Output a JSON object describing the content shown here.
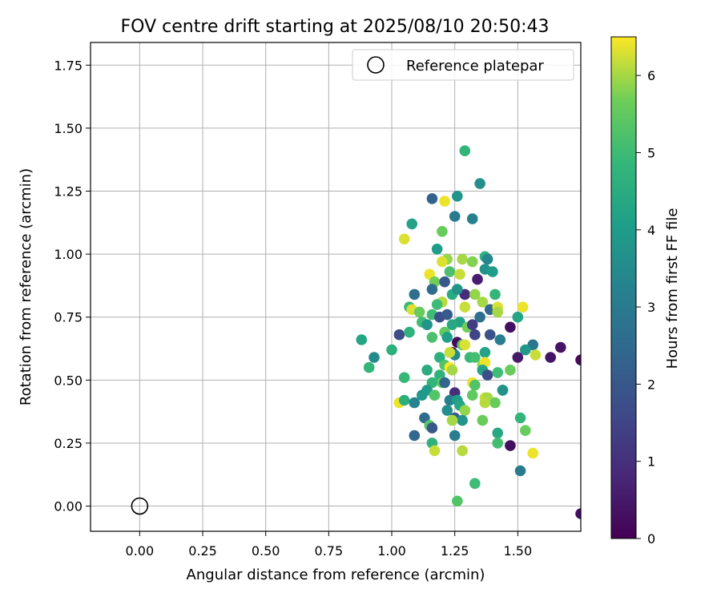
{
  "chart_data": {
    "type": "scatter",
    "title": "FOV centre drift starting at 2025/08/10 20:50:43",
    "xlabel": "Angular distance from reference (arcmin)",
    "ylabel": "Rotation from reference (arcmin)",
    "xlim": [
      -0.195,
      1.75
    ],
    "ylim": [
      -0.1,
      1.84
    ],
    "xticks": [
      "0.00",
      "0.25",
      "0.50",
      "0.75",
      "1.00",
      "1.25",
      "1.50"
    ],
    "yticks": [
      "0.00",
      "0.25",
      "0.50",
      "0.75",
      "1.00",
      "1.25",
      "1.50",
      "1.75"
    ],
    "grid": true,
    "legend": {
      "position": "top-right",
      "entries": [
        "Reference platepar"
      ]
    },
    "reference_point": {
      "x": 0.0,
      "y": 0.0,
      "name": "Reference platepar"
    },
    "colorbar": {
      "label": "Hours from first FF file",
      "colormap": "viridis",
      "range": [
        0,
        6.5
      ],
      "ticks": [
        "0",
        "1",
        "2",
        "3",
        "4",
        "5",
        "6"
      ]
    },
    "points": [
      {
        "x": 1.29,
        "y": 1.41,
        "h": 4.8
      },
      {
        "x": 1.35,
        "y": 1.28,
        "h": 3.6
      },
      {
        "x": 1.26,
        "y": 1.23,
        "h": 3.8
      },
      {
        "x": 1.16,
        "y": 1.22,
        "h": 2.3
      },
      {
        "x": 1.21,
        "y": 1.21,
        "h": 6.4
      },
      {
        "x": 1.25,
        "y": 1.15,
        "h": 3.0
      },
      {
        "x": 1.32,
        "y": 1.14,
        "h": 3.2
      },
      {
        "x": 1.08,
        "y": 1.12,
        "h": 4.2
      },
      {
        "x": 1.2,
        "y": 1.09,
        "h": 5.6
      },
      {
        "x": 1.05,
        "y": 1.06,
        "h": 6.3
      },
      {
        "x": 1.18,
        "y": 1.02,
        "h": 4.0
      },
      {
        "x": 1.22,
        "y": 0.98,
        "h": 5.9
      },
      {
        "x": 1.2,
        "y": 0.97,
        "h": 6.3
      },
      {
        "x": 1.28,
        "y": 0.98,
        "h": 6.0
      },
      {
        "x": 1.32,
        "y": 0.97,
        "h": 5.8
      },
      {
        "x": 1.37,
        "y": 0.99,
        "h": 4.6
      },
      {
        "x": 1.38,
        "y": 0.98,
        "h": 3.4
      },
      {
        "x": 1.23,
        "y": 0.93,
        "h": 5.2
      },
      {
        "x": 1.27,
        "y": 0.92,
        "h": 6.2
      },
      {
        "x": 1.37,
        "y": 0.94,
        "h": 3.7
      },
      {
        "x": 1.4,
        "y": 0.93,
        "h": 4.0
      },
      {
        "x": 1.15,
        "y": 0.92,
        "h": 6.4
      },
      {
        "x": 1.17,
        "y": 0.89,
        "h": 5.7
      },
      {
        "x": 1.21,
        "y": 0.89,
        "h": 2.0
      },
      {
        "x": 1.34,
        "y": 0.9,
        "h": 0.6
      },
      {
        "x": 1.16,
        "y": 0.86,
        "h": 2.6
      },
      {
        "x": 1.09,
        "y": 0.84,
        "h": 2.7
      },
      {
        "x": 1.24,
        "y": 0.84,
        "h": 4.5
      },
      {
        "x": 1.29,
        "y": 0.84,
        "h": 0.9
      },
      {
        "x": 1.33,
        "y": 0.84,
        "h": 5.9
      },
      {
        "x": 1.26,
        "y": 0.86,
        "h": 3.7
      },
      {
        "x": 1.41,
        "y": 0.84,
        "h": 4.8
      },
      {
        "x": 1.36,
        "y": 0.81,
        "h": 6.0
      },
      {
        "x": 1.2,
        "y": 0.81,
        "h": 6.1
      },
      {
        "x": 1.18,
        "y": 0.8,
        "h": 5.0
      },
      {
        "x": 1.39,
        "y": 0.78,
        "h": 2.4
      },
      {
        "x": 1.07,
        "y": 0.79,
        "h": 4.9
      },
      {
        "x": 1.08,
        "y": 0.78,
        "h": 6.3
      },
      {
        "x": 1.11,
        "y": 0.77,
        "h": 5.6
      },
      {
        "x": 1.29,
        "y": 0.79,
        "h": 6.2
      },
      {
        "x": 1.42,
        "y": 0.79,
        "h": 6.3
      },
      {
        "x": 1.42,
        "y": 0.77,
        "h": 6.0
      },
      {
        "x": 1.52,
        "y": 0.79,
        "h": 6.4
      },
      {
        "x": 1.16,
        "y": 0.76,
        "h": 5.0
      },
      {
        "x": 1.19,
        "y": 0.75,
        "h": 1.8
      },
      {
        "x": 1.22,
        "y": 0.76,
        "h": 2.1
      },
      {
        "x": 1.35,
        "y": 0.75,
        "h": 2.7
      },
      {
        "x": 1.5,
        "y": 0.75,
        "h": 4.3
      },
      {
        "x": 1.12,
        "y": 0.73,
        "h": 5.0
      },
      {
        "x": 1.14,
        "y": 0.72,
        "h": 3.8
      },
      {
        "x": 1.27,
        "y": 0.73,
        "h": 4.2
      },
      {
        "x": 1.3,
        "y": 0.71,
        "h": 5.7
      },
      {
        "x": 1.24,
        "y": 0.72,
        "h": 4.4
      },
      {
        "x": 1.32,
        "y": 0.72,
        "h": 1.3
      },
      {
        "x": 1.47,
        "y": 0.71,
        "h": 0.3
      },
      {
        "x": 1.03,
        "y": 0.68,
        "h": 1.7
      },
      {
        "x": 1.07,
        "y": 0.69,
        "h": 4.7
      },
      {
        "x": 1.21,
        "y": 0.69,
        "h": 5.5
      },
      {
        "x": 1.22,
        "y": 0.67,
        "h": 4.1
      },
      {
        "x": 1.16,
        "y": 0.67,
        "h": 5.2
      },
      {
        "x": 1.33,
        "y": 0.68,
        "h": 1.5
      },
      {
        "x": 1.39,
        "y": 0.68,
        "h": 1.9
      },
      {
        "x": 1.43,
        "y": 0.66,
        "h": 3.1
      },
      {
        "x": 0.88,
        "y": 0.66,
        "h": 4.3
      },
      {
        "x": 1.26,
        "y": 0.65,
        "h": 0.2
      },
      {
        "x": 1.28,
        "y": 0.64,
        "h": 5.4
      },
      {
        "x": 1.29,
        "y": 0.64,
        "h": 6.3
      },
      {
        "x": 1.56,
        "y": 0.64,
        "h": 2.9
      },
      {
        "x": 1.67,
        "y": 0.63,
        "h": 0.4
      },
      {
        "x": 1.0,
        "y": 0.62,
        "h": 4.6
      },
      {
        "x": 1.53,
        "y": 0.62,
        "h": 3.9
      },
      {
        "x": 1.24,
        "y": 0.61,
        "h": 0.3
      },
      {
        "x": 1.25,
        "y": 0.6,
        "h": 3.5
      },
      {
        "x": 1.23,
        "y": 0.61,
        "h": 6.2
      },
      {
        "x": 1.37,
        "y": 0.61,
        "h": 4.2
      },
      {
        "x": 0.93,
        "y": 0.59,
        "h": 3.5
      },
      {
        "x": 1.19,
        "y": 0.59,
        "h": 4.6
      },
      {
        "x": 1.31,
        "y": 0.59,
        "h": 4.9
      },
      {
        "x": 1.33,
        "y": 0.59,
        "h": 5.1
      },
      {
        "x": 1.5,
        "y": 0.59,
        "h": 0.5
      },
      {
        "x": 1.57,
        "y": 0.6,
        "h": 6.2
      },
      {
        "x": 1.63,
        "y": 0.59,
        "h": 0.4
      },
      {
        "x": 1.75,
        "y": 0.58,
        "h": 0.2
      },
      {
        "x": 1.21,
        "y": 0.56,
        "h": 5.3
      },
      {
        "x": 1.36,
        "y": 0.56,
        "h": 5.9
      },
      {
        "x": 1.37,
        "y": 0.57,
        "h": 6.4
      },
      {
        "x": 0.91,
        "y": 0.55,
        "h": 4.8
      },
      {
        "x": 1.23,
        "y": 0.55,
        "h": 6.5
      },
      {
        "x": 1.24,
        "y": 0.54,
        "h": 6.0
      },
      {
        "x": 1.14,
        "y": 0.54,
        "h": 4.5
      },
      {
        "x": 1.36,
        "y": 0.54,
        "h": 4.2
      },
      {
        "x": 1.38,
        "y": 0.52,
        "h": 1.7
      },
      {
        "x": 1.42,
        "y": 0.53,
        "h": 5.0
      },
      {
        "x": 1.47,
        "y": 0.54,
        "h": 5.6
      },
      {
        "x": 1.19,
        "y": 0.52,
        "h": 4.7
      },
      {
        "x": 1.05,
        "y": 0.51,
        "h": 4.9
      },
      {
        "x": 1.2,
        "y": 0.49,
        "h": 5.5
      },
      {
        "x": 1.21,
        "y": 0.49,
        "h": 2.4
      },
      {
        "x": 1.32,
        "y": 0.49,
        "h": 6.4
      },
      {
        "x": 1.33,
        "y": 0.48,
        "h": 5.3
      },
      {
        "x": 1.16,
        "y": 0.49,
        "h": 4.8
      },
      {
        "x": 1.44,
        "y": 0.46,
        "h": 4.7
      },
      {
        "x": 1.44,
        "y": 0.46,
        "h": 3.7
      },
      {
        "x": 1.14,
        "y": 0.46,
        "h": 4.0
      },
      {
        "x": 1.12,
        "y": 0.44,
        "h": 3.9
      },
      {
        "x": 1.17,
        "y": 0.44,
        "h": 5.3
      },
      {
        "x": 1.25,
        "y": 0.45,
        "h": 1.0
      },
      {
        "x": 1.32,
        "y": 0.44,
        "h": 5.5
      },
      {
        "x": 1.37,
        "y": 0.43,
        "h": 6.2
      },
      {
        "x": 1.38,
        "y": 0.43,
        "h": 6.0
      },
      {
        "x": 1.41,
        "y": 0.41,
        "h": 5.6
      },
      {
        "x": 1.37,
        "y": 0.41,
        "h": 6.1
      },
      {
        "x": 1.03,
        "y": 0.41,
        "h": 6.4
      },
      {
        "x": 1.05,
        "y": 0.42,
        "h": 4.6
      },
      {
        "x": 1.09,
        "y": 0.41,
        "h": 3.3
      },
      {
        "x": 1.23,
        "y": 0.42,
        "h": 3.2
      },
      {
        "x": 1.26,
        "y": 0.42,
        "h": 4.1
      },
      {
        "x": 1.27,
        "y": 0.4,
        "h": 4.3
      },
      {
        "x": 1.22,
        "y": 0.38,
        "h": 3.6
      },
      {
        "x": 1.29,
        "y": 0.38,
        "h": 5.9
      },
      {
        "x": 1.13,
        "y": 0.35,
        "h": 2.6
      },
      {
        "x": 1.25,
        "y": 0.35,
        "h": 2.1
      },
      {
        "x": 1.28,
        "y": 0.34,
        "h": 3.8
      },
      {
        "x": 1.24,
        "y": 0.34,
        "h": 6.0
      },
      {
        "x": 1.36,
        "y": 0.34,
        "h": 5.6
      },
      {
        "x": 1.51,
        "y": 0.35,
        "h": 4.8
      },
      {
        "x": 1.15,
        "y": 0.32,
        "h": 5.4
      },
      {
        "x": 1.16,
        "y": 0.31,
        "h": 2.0
      },
      {
        "x": 1.42,
        "y": 0.29,
        "h": 4.4
      },
      {
        "x": 1.53,
        "y": 0.3,
        "h": 5.6
      },
      {
        "x": 1.09,
        "y": 0.28,
        "h": 2.4
      },
      {
        "x": 1.25,
        "y": 0.28,
        "h": 3.1
      },
      {
        "x": 1.16,
        "y": 0.25,
        "h": 4.7
      },
      {
        "x": 1.42,
        "y": 0.25,
        "h": 5.1
      },
      {
        "x": 1.47,
        "y": 0.24,
        "h": 0.3
      },
      {
        "x": 1.17,
        "y": 0.22,
        "h": 6.2
      },
      {
        "x": 1.28,
        "y": 0.22,
        "h": 6.1
      },
      {
        "x": 1.56,
        "y": 0.21,
        "h": 6.4
      },
      {
        "x": 1.51,
        "y": 0.14,
        "h": 3.0
      },
      {
        "x": 1.33,
        "y": 0.09,
        "h": 5.0
      },
      {
        "x": 1.26,
        "y": 0.02,
        "h": 5.3
      },
      {
        "x": 1.75,
        "y": -0.03,
        "h": 0.3
      }
    ]
  }
}
